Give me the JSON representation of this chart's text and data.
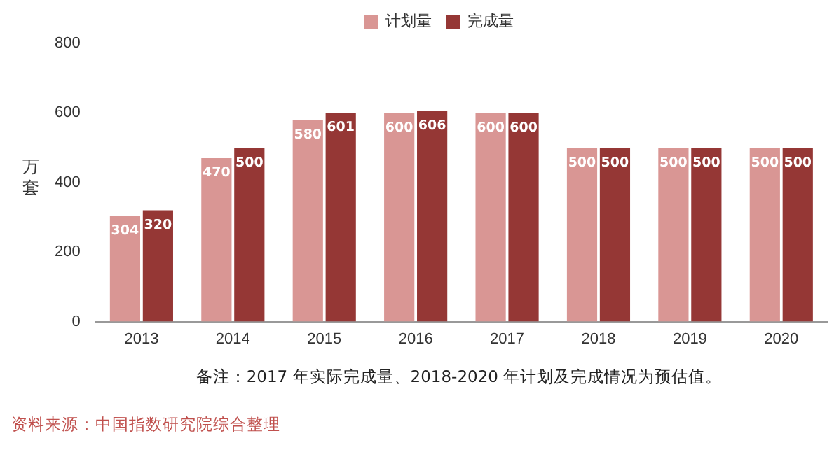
{
  "chart_data": {
    "type": "bar",
    "ylabel": "万套",
    "categories": [
      "2013",
      "2014",
      "2015",
      "2016",
      "2017",
      "2018",
      "2019",
      "2020"
    ],
    "series": [
      {
        "name": "计划量",
        "color": "#d99694",
        "values": [
          304,
          470,
          580,
          600,
          600,
          500,
          500,
          500
        ]
      },
      {
        "name": "完成量",
        "color": "#953735",
        "values": [
          320,
          500,
          601,
          606,
          600,
          500,
          500,
          500
        ]
      }
    ],
    "ylim": [
      0,
      800
    ],
    "yticks": [
      0,
      200,
      400,
      600,
      800
    ],
    "grid": false,
    "legend": "top",
    "data_labels": true,
    "annotations": [
      "备注：2017 年实际完成量、2018-2020 年计划及完成情况为预估值。",
      "资料来源：中国指数研究院综合整理"
    ]
  }
}
